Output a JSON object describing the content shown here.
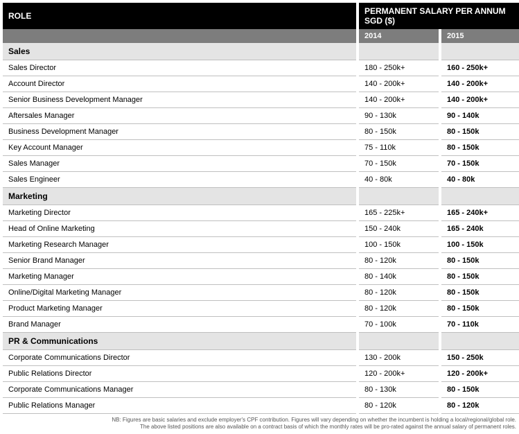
{
  "headers": {
    "role": "ROLE",
    "salary": "PERMANENT SALARY PER ANNUM SGD ($)",
    "year1": "2014",
    "year2": "2015"
  },
  "sections": [
    {
      "title": "Sales",
      "rows": [
        {
          "role": "Sales Director",
          "y1": "180 - 250k+",
          "y2": "160 - 250k+"
        },
        {
          "role": "Account Director",
          "y1": "140 - 200k+",
          "y2": "140 - 200k+"
        },
        {
          "role": "Senior Business Development Manager",
          "y1": "140 - 200k+",
          "y2": "140 - 200k+"
        },
        {
          "role": "Aftersales Manager",
          "y1": "90 - 130k",
          "y2": "90 - 140k"
        },
        {
          "role": "Business Development Manager",
          "y1": "80 - 150k",
          "y2": "80 - 150k"
        },
        {
          "role": "Key Account Manager",
          "y1": "75 - 110k",
          "y2": "80 - 150k"
        },
        {
          "role": "Sales Manager",
          "y1": "70 - 150k",
          "y2": "70 - 150k"
        },
        {
          "role": "Sales Engineer",
          "y1": "40 - 80k",
          "y2": "40 - 80k"
        }
      ]
    },
    {
      "title": "Marketing",
      "rows": [
        {
          "role": "Marketing Director",
          "y1": "165 - 225k+",
          "y2": "165 - 240k+"
        },
        {
          "role": "Head of Online Marketing",
          "y1": "150 - 240k",
          "y2": "165 - 240k"
        },
        {
          "role": "Marketing Research Manager",
          "y1": "100 - 150k",
          "y2": "100 - 150k"
        },
        {
          "role": "Senior Brand Manager",
          "y1": "80 - 120k",
          "y2": "80 - 150k"
        },
        {
          "role": "Marketing Manager",
          "y1": "80 - 140k",
          "y2": "80 - 150k"
        },
        {
          "role": "Online/Digital Marketing Manager",
          "y1": "80 - 120k",
          "y2": "80 - 150k"
        },
        {
          "role": "Product Marketing Manager",
          "y1": "80 - 120k",
          "y2": "80 - 150k"
        },
        {
          "role": "Brand Manager",
          "y1": "70 - 100k",
          "y2": "70 - 110k"
        }
      ]
    },
    {
      "title": "PR & Communications",
      "rows": [
        {
          "role": "Corporate Communications Director",
          "y1": "130 - 200k",
          "y2": "150 - 250k"
        },
        {
          "role": "Public Relations Director",
          "y1": "120 - 200k+",
          "y2": "120 - 200k+"
        },
        {
          "role": "Corporate Communications Manager",
          "y1": "80 - 130k",
          "y2": "80 - 150k"
        },
        {
          "role": "Public Relations Manager",
          "y1": "80 - 120k",
          "y2": "80 - 120k"
        }
      ]
    }
  ],
  "footnote": {
    "line1": "NB: Figures are basic salaries and exclude employer's CPF contribution. Figures will vary depending on whether the incumbent is holding a local/regional/global role.",
    "line2": "The above listed positions are also available on a contract basis of which the monthly rates will be pro-rated against the annual salary of permanent roles."
  }
}
